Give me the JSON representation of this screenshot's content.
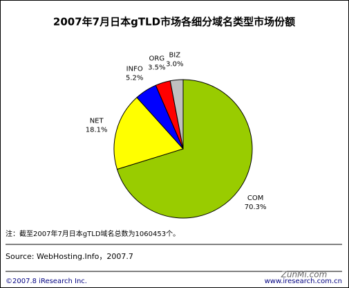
{
  "chart_data": {
    "type": "pie",
    "title": "2007年7月日本gTLD市场各细分域名类型市场份额",
    "categories": [
      "COM",
      "NET",
      "INFO",
      "ORG",
      "BIZ"
    ],
    "values": [
      70.3,
      18.1,
      5.2,
      3.5,
      3.0
    ],
    "value_labels": [
      "70.3%",
      "18.1%",
      "5.2%",
      "3.5%",
      "3.0%"
    ],
    "colors": [
      "#99cc00",
      "#ffff00",
      "#0000ff",
      "#ff0000",
      "#c0c0c0"
    ]
  },
  "note": "注：截至2007年7月日本gTLD域名总数为1060453个。",
  "source": "Source:  WebHosting.Info，2007.7",
  "copyright": "©2007.8 iResearch Inc.",
  "website": "www.iresearch.com.cn",
  "watermark": "ZunMi.com"
}
